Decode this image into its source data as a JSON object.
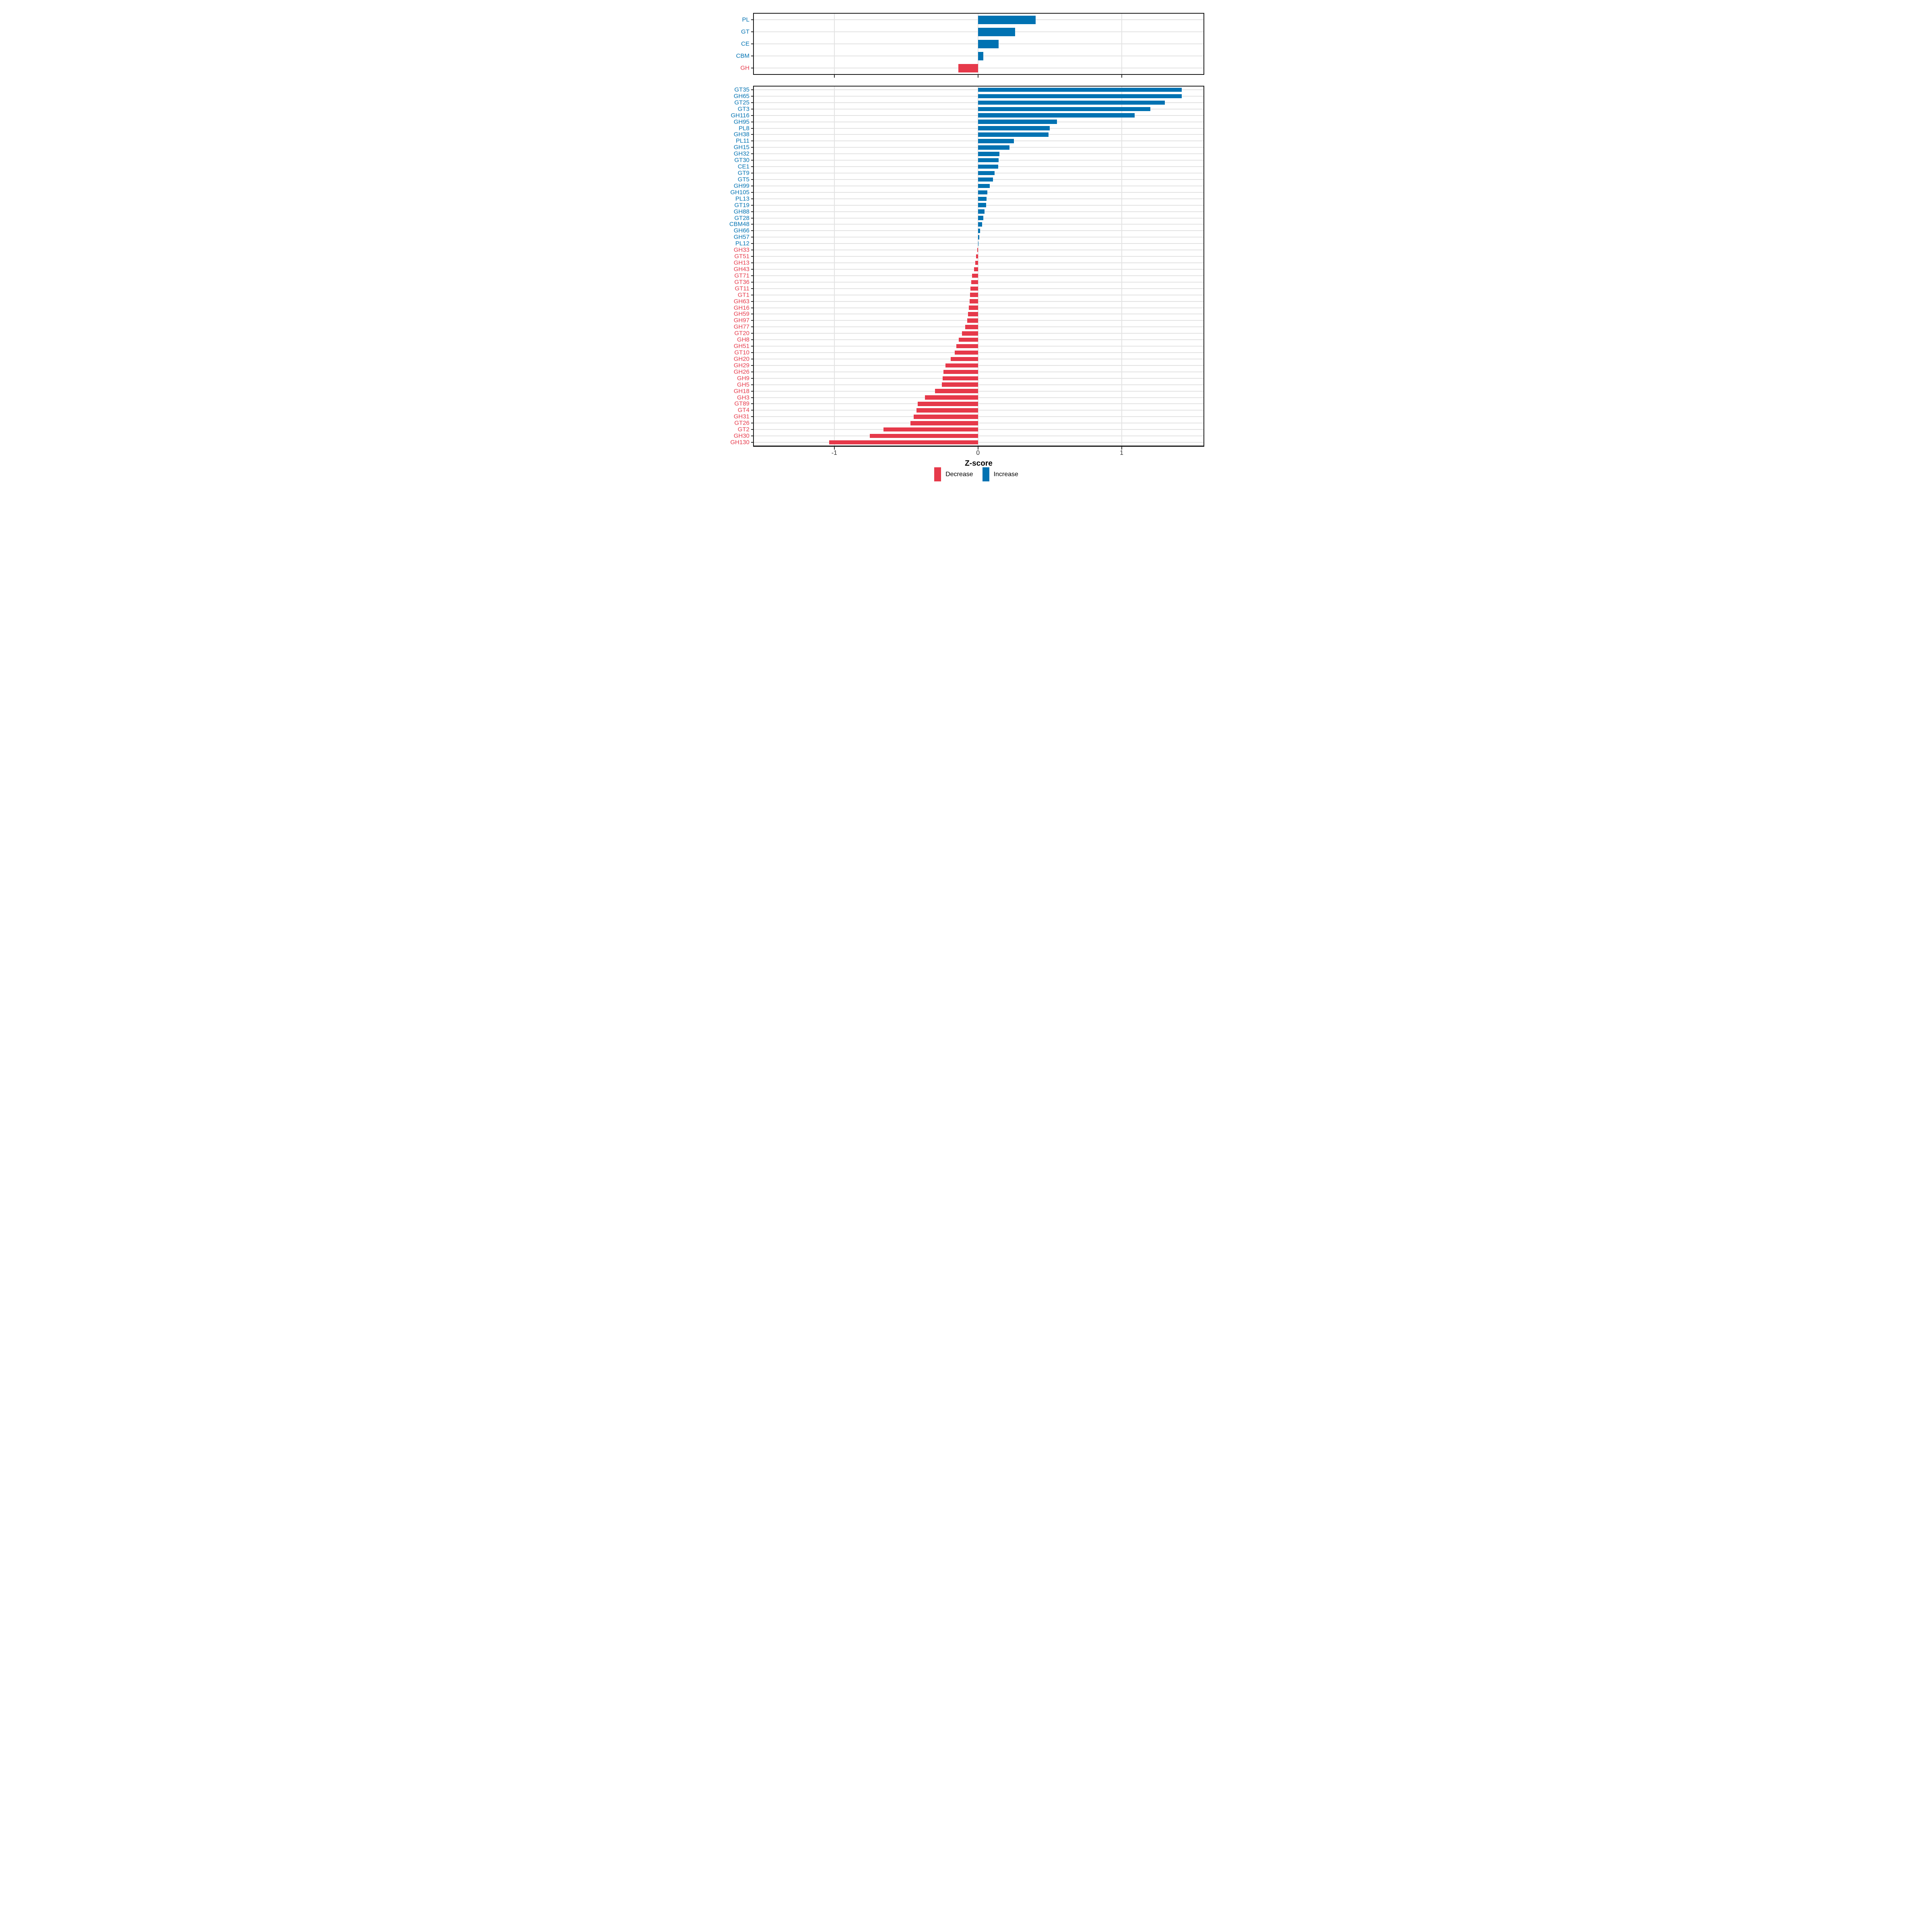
{
  "figure": {
    "x_axis": {
      "label": "Z-score",
      "domain": [
        -1.56,
        1.57
      ],
      "ticks": [
        {
          "label": "-1",
          "value": -1
        },
        {
          "label": "0",
          "value": 0
        },
        {
          "label": "1",
          "value": 1
        }
      ]
    },
    "legend": {
      "position": "bottom",
      "items": [
        {
          "label": "Decrease",
          "color_key": "decrease"
        },
        {
          "label": "Increase",
          "color_key": "increase"
        }
      ]
    },
    "colors": {
      "increase": "#0072B2",
      "decrease": "#E6394A",
      "grid": "#E3E3E3",
      "panel_border": "#1A1A1A",
      "tick": "#333333",
      "background": "#FFFFFF"
    }
  },
  "chart_data": [
    {
      "type": "bar",
      "orientation": "horizontal",
      "panel": "top",
      "title": "",
      "xlabel": "Z-score",
      "xlim": [
        -1.56,
        1.57
      ],
      "grid": true,
      "categories": [
        "PL",
        "GT",
        "CE",
        "CBM",
        "GH"
      ],
      "values": [
        0.401,
        0.259,
        0.143,
        0.036,
        -0.137
      ]
    },
    {
      "type": "bar",
      "orientation": "horizontal",
      "panel": "bottom",
      "title": "",
      "xlabel": "Z-score",
      "xlim": [
        -1.56,
        1.57
      ],
      "grid": true,
      "categories": [
        "GT35",
        "GH65",
        "GT25",
        "GT3",
        "GH116",
        "GH95",
        "PL8",
        "GH38",
        "PL11",
        "GH15",
        "GH32",
        "GT30",
        "CE1",
        "GT9",
        "GT5",
        "GH99",
        "GH105",
        "PL13",
        "GT19",
        "GH88",
        "GT28",
        "CBM48",
        "GH66",
        "GH57",
        "PL12",
        "GH33",
        "GT51",
        "GH13",
        "GH43",
        "GT71",
        "GT36",
        "GT11",
        "GT1",
        "GH63",
        "GH16",
        "GH59",
        "GH97",
        "GH77",
        "GT20",
        "GH8",
        "GH51",
        "GT10",
        "GH20",
        "GH29",
        "GH26",
        "GH9",
        "GH5",
        "GH18",
        "GH3",
        "GT89",
        "GT4",
        "GH31",
        "GT26",
        "GT2",
        "GH30",
        "GH130"
      ],
      "values": [
        1.42,
        1.42,
        1.3,
        1.2,
        1.09,
        0.55,
        0.5,
        0.49,
        0.25,
        0.22,
        0.15,
        0.145,
        0.14,
        0.115,
        0.105,
        0.083,
        0.064,
        0.06,
        0.056,
        0.045,
        0.037,
        0.03,
        0.014,
        0.009,
        0.005,
        -0.005,
        -0.012,
        -0.018,
        -0.028,
        -0.04,
        -0.047,
        -0.052,
        -0.056,
        -0.059,
        -0.063,
        -0.068,
        -0.076,
        -0.088,
        -0.11,
        -0.135,
        -0.15,
        -0.161,
        -0.19,
        -0.225,
        -0.24,
        -0.246,
        -0.252,
        -0.3,
        -0.37,
        -0.419,
        -0.428,
        -0.447,
        -0.47,
        -0.659,
        -0.753,
        -1.035
      ]
    }
  ]
}
